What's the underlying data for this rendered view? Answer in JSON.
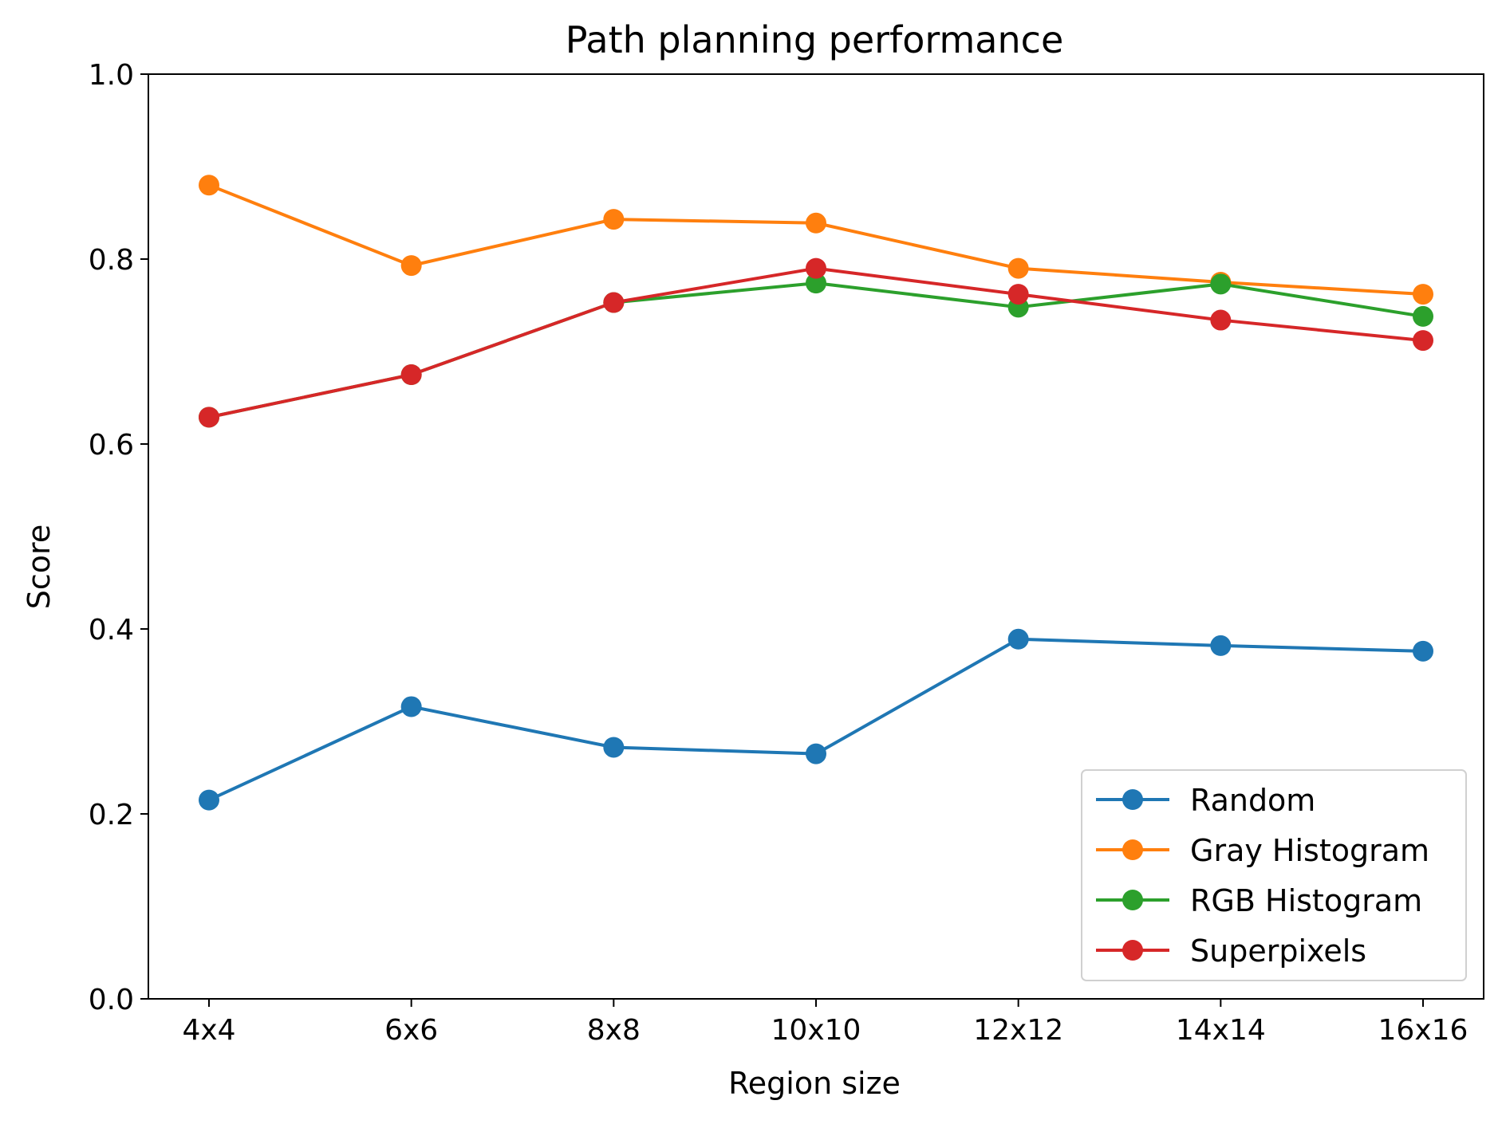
{
  "chart_data": {
    "type": "line",
    "title": "Path planning performance",
    "xlabel": "Region size",
    "ylabel": "Score",
    "categories": [
      "4x4",
      "6x6",
      "8x8",
      "10x10",
      "12x12",
      "14x14",
      "16x16"
    ],
    "ylim": [
      0.0,
      1.0
    ],
    "yticks": [
      "0.0",
      "0.2",
      "0.4",
      "0.6",
      "0.8",
      "1.0"
    ],
    "grid": false,
    "legend_position": "lower-right",
    "series": [
      {
        "name": "Random",
        "color": "#1f77b4",
        "values": [
          0.215,
          0.316,
          0.272,
          0.265,
          0.389,
          0.382,
          0.376
        ]
      },
      {
        "name": "Gray Histogram",
        "color": "#ff7f0e",
        "values": [
          0.88,
          0.793,
          0.843,
          0.839,
          0.79,
          0.775,
          0.762
        ]
      },
      {
        "name": "RGB Histogram",
        "color": "#2ca02c",
        "values": [
          0.629,
          0.675,
          0.753,
          0.774,
          0.748,
          0.773,
          0.738
        ]
      },
      {
        "name": "Superpixels",
        "color": "#d62728",
        "values": [
          0.629,
          0.675,
          0.753,
          0.79,
          0.762,
          0.734,
          0.712
        ]
      }
    ]
  }
}
